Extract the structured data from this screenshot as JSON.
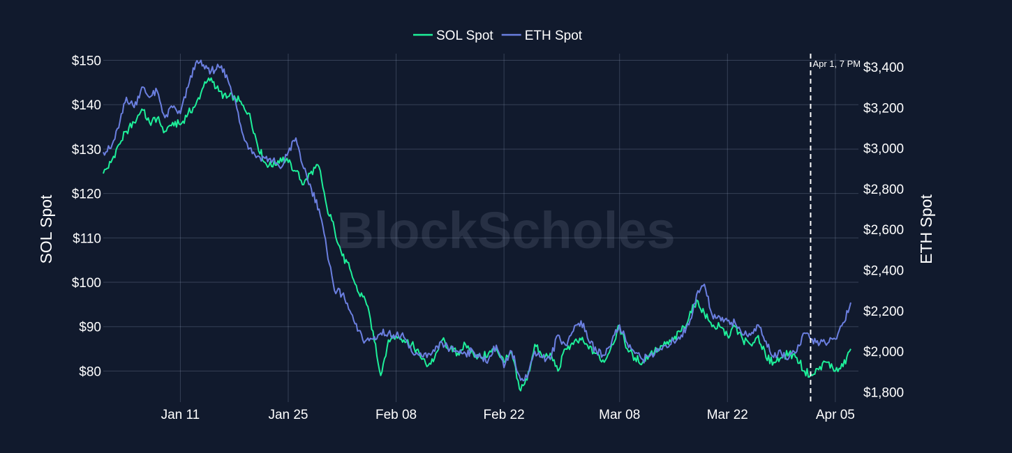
{
  "chart_data": {
    "type": "line",
    "watermark": "BlockScholes",
    "legend_position": "top-center",
    "grid": true,
    "annotation": {
      "label": "Apr 1, 7 PM",
      "x": "2024-04-01T19:00"
    },
    "x_ticks": [
      {
        "date": "2024-01-11",
        "label": "Jan 11"
      },
      {
        "date": "2024-01-25",
        "label": "Jan 25"
      },
      {
        "date": "2024-02-08",
        "label": "Feb 08"
      },
      {
        "date": "2024-02-22",
        "label": "Feb 22"
      },
      {
        "date": "2024-03-08",
        "label": "Mar 08"
      },
      {
        "date": "2024-03-22",
        "label": "Mar 22"
      },
      {
        "date": "2024-04-05",
        "label": "Apr 05"
      }
    ],
    "xlim": [
      "2024-01-01",
      "2024-04-08"
    ],
    "y_left": {
      "title": "SOL Spot",
      "range": [
        73,
        151.5
      ],
      "ticks": [
        80,
        90,
        100,
        110,
        120,
        130,
        140,
        150
      ],
      "tick_labels": [
        "$80",
        "$90",
        "$100",
        "$110",
        "$120",
        "$130",
        "$140",
        "$150"
      ]
    },
    "y_right": {
      "title": "ETH Spot",
      "range": [
        1750,
        3465
      ],
      "ticks": [
        1800,
        2000,
        2200,
        2400,
        2600,
        2800,
        3000,
        3200,
        3400
      ],
      "tick_labels": [
        "$1,800",
        "$2,000",
        "$2,200",
        "$2,400",
        "$2,600",
        "$2,800",
        "$3,000",
        "$3,200",
        "$3,400"
      ]
    },
    "series": [
      {
        "name": "SOL Spot",
        "axis": "left",
        "color": "#1ef09a",
        "x": [
          "2024-01-01",
          "2024-01-02",
          "2024-01-03",
          "2024-01-04",
          "2024-01-05",
          "2024-01-06",
          "2024-01-07",
          "2024-01-08",
          "2024-01-09",
          "2024-01-10",
          "2024-01-11",
          "2024-01-12",
          "2024-01-13",
          "2024-01-14",
          "2024-01-15",
          "2024-01-16",
          "2024-01-17",
          "2024-01-18",
          "2024-01-19",
          "2024-01-20",
          "2024-01-21",
          "2024-01-22",
          "2024-01-23",
          "2024-01-24",
          "2024-01-25",
          "2024-01-26",
          "2024-01-27",
          "2024-01-28",
          "2024-01-29",
          "2024-01-30",
          "2024-01-31",
          "2024-02-01",
          "2024-02-02",
          "2024-02-03",
          "2024-02-04",
          "2024-02-05",
          "2024-02-06",
          "2024-02-07",
          "2024-02-08",
          "2024-02-09",
          "2024-02-10",
          "2024-02-11",
          "2024-02-12",
          "2024-02-13",
          "2024-02-14",
          "2024-02-15",
          "2024-02-16",
          "2024-02-17",
          "2024-02-18",
          "2024-02-19",
          "2024-02-20",
          "2024-02-21",
          "2024-02-22",
          "2024-02-23",
          "2024-02-24",
          "2024-02-25",
          "2024-02-26",
          "2024-02-27",
          "2024-02-28",
          "2024-02-29",
          "2024-03-01",
          "2024-03-02",
          "2024-03-03",
          "2024-03-04",
          "2024-03-05",
          "2024-03-06",
          "2024-03-07",
          "2024-03-08",
          "2024-03-09",
          "2024-03-10",
          "2024-03-11",
          "2024-03-12",
          "2024-03-13",
          "2024-03-14",
          "2024-03-15",
          "2024-03-16",
          "2024-03-17",
          "2024-03-18",
          "2024-03-19",
          "2024-03-20",
          "2024-03-21",
          "2024-03-22",
          "2024-03-23",
          "2024-03-24",
          "2024-03-25",
          "2024-03-26",
          "2024-03-27",
          "2024-03-28",
          "2024-03-29",
          "2024-03-30",
          "2024-03-31",
          "2024-04-01",
          "2024-04-02",
          "2024-04-03",
          "2024-04-04",
          "2024-04-05",
          "2024-04-06",
          "2024-04-07"
        ],
        "y": [
          124.5,
          127,
          131,
          134,
          136,
          139,
          136,
          137,
          134,
          136,
          135.5,
          138,
          140,
          144,
          146,
          143,
          141.5,
          142,
          140,
          138,
          131,
          127,
          126,
          128,
          127,
          125,
          122,
          125,
          126,
          117,
          112,
          106,
          103,
          98,
          96,
          89,
          79,
          87,
          88,
          87,
          86,
          84,
          81,
          83,
          87,
          85,
          84,
          86,
          84,
          83,
          84,
          85,
          82,
          84,
          76,
          78,
          86,
          83,
          84,
          80,
          85,
          86,
          87,
          85,
          84,
          82,
          86,
          90,
          85,
          83,
          82,
          84,
          85,
          86,
          87,
          89,
          92,
          96,
          93,
          90,
          90,
          88,
          90,
          87,
          86,
          88,
          83,
          82,
          83,
          84,
          83,
          80,
          79,
          81,
          82,
          80,
          81,
          85
        ]
      },
      {
        "name": "ETH Spot",
        "axis": "right",
        "color": "#6b7fe0",
        "x": [
          "2024-01-01",
          "2024-01-02",
          "2024-01-03",
          "2024-01-04",
          "2024-01-05",
          "2024-01-06",
          "2024-01-07",
          "2024-01-08",
          "2024-01-09",
          "2024-01-10",
          "2024-01-11",
          "2024-01-12",
          "2024-01-13",
          "2024-01-14",
          "2024-01-15",
          "2024-01-16",
          "2024-01-17",
          "2024-01-18",
          "2024-01-19",
          "2024-01-20",
          "2024-01-21",
          "2024-01-22",
          "2024-01-23",
          "2024-01-24",
          "2024-01-25",
          "2024-01-26",
          "2024-01-27",
          "2024-01-28",
          "2024-01-29",
          "2024-01-30",
          "2024-01-31",
          "2024-02-01",
          "2024-02-02",
          "2024-02-03",
          "2024-02-04",
          "2024-02-05",
          "2024-02-06",
          "2024-02-07",
          "2024-02-08",
          "2024-02-09",
          "2024-02-10",
          "2024-02-11",
          "2024-02-12",
          "2024-02-13",
          "2024-02-14",
          "2024-02-15",
          "2024-02-16",
          "2024-02-17",
          "2024-02-18",
          "2024-02-19",
          "2024-02-20",
          "2024-02-21",
          "2024-02-22",
          "2024-02-23",
          "2024-02-24",
          "2024-02-25",
          "2024-02-26",
          "2024-02-27",
          "2024-02-28",
          "2024-02-29",
          "2024-03-01",
          "2024-03-02",
          "2024-03-03",
          "2024-03-04",
          "2024-03-05",
          "2024-03-06",
          "2024-03-07",
          "2024-03-08",
          "2024-03-09",
          "2024-03-10",
          "2024-03-11",
          "2024-03-12",
          "2024-03-13",
          "2024-03-14",
          "2024-03-15",
          "2024-03-16",
          "2024-03-17",
          "2024-03-18",
          "2024-03-19",
          "2024-03-20",
          "2024-03-21",
          "2024-03-22",
          "2024-03-23",
          "2024-03-24",
          "2024-03-25",
          "2024-03-26",
          "2024-03-27",
          "2024-03-28",
          "2024-03-29",
          "2024-03-30",
          "2024-03-31",
          "2024-04-01",
          "2024-04-02",
          "2024-04-03",
          "2024-04-04",
          "2024-04-05",
          "2024-04-06",
          "2024-04-07"
        ],
        "y": [
          2980,
          3000,
          3100,
          3250,
          3200,
          3300,
          3250,
          3280,
          3150,
          3200,
          3170,
          3300,
          3420,
          3410,
          3380,
          3400,
          3360,
          3250,
          3080,
          3000,
          2960,
          2950,
          2940,
          2900,
          2980,
          3050,
          2900,
          2800,
          2700,
          2500,
          2300,
          2280,
          2200,
          2100,
          2050,
          2060,
          2090,
          2090,
          2080,
          2070,
          2000,
          1980,
          1970,
          2000,
          2040,
          2010,
          2000,
          1990,
          2000,
          1970,
          1960,
          2030,
          1920,
          2000,
          1880,
          1870,
          2000,
          1970,
          1960,
          2080,
          2030,
          2100,
          2150,
          2050,
          2000,
          1980,
          2050,
          2130,
          2040,
          1990,
          1960,
          1980,
          2000,
          2030,
          2050,
          2080,
          2130,
          2280,
          2330,
          2180,
          2170,
          2150,
          2140,
          2080,
          2080,
          2130,
          2050,
          1970,
          1990,
          1970,
          2000,
          2090,
          2060,
          2040,
          2040,
          2060,
          2140,
          2240
        ]
      }
    ]
  }
}
